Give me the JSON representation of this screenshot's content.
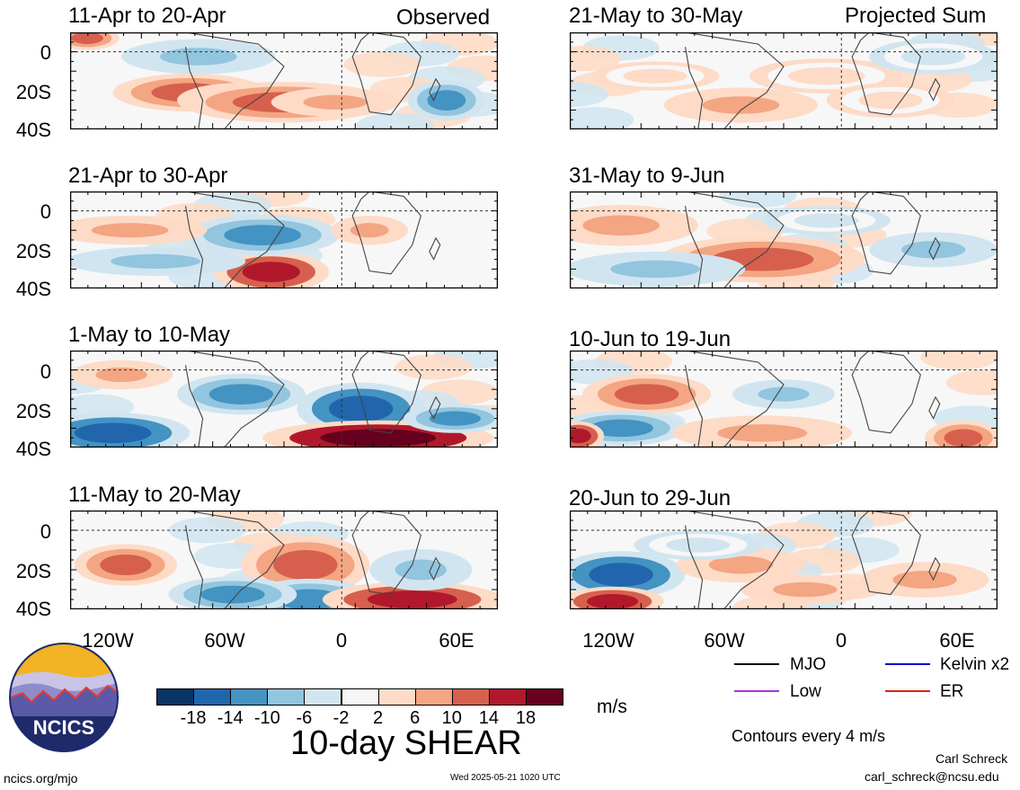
{
  "columns": {
    "observed_label": "Observed",
    "projected_label": "Projected Sum"
  },
  "panels_left": [
    {
      "title": "11-Apr to 20-Apr"
    },
    {
      "title": "21-Apr to 30-Apr"
    },
    {
      "title": "1-May to 10-May"
    },
    {
      "title": "11-May to 20-May"
    }
  ],
  "panels_right": [
    {
      "title": "21-May to 30-May"
    },
    {
      "title": "31-May to 9-Jun"
    },
    {
      "title": "10-Jun to 19-Jun"
    },
    {
      "title": "20-Jun to 29-Jun"
    }
  ],
  "axes": {
    "y_ticks": [
      "0",
      "20S",
      "40S"
    ],
    "x_ticks": [
      "120W",
      "60W",
      "0",
      "60E"
    ]
  },
  "colorbar": {
    "colors": [
      "#0b3466",
      "#2166ac",
      "#4393c3",
      "#92c5de",
      "#d1e5f0",
      "#f7f7f7",
      "#fddbc7",
      "#f4a582",
      "#d6604d",
      "#b2182b",
      "#67001f"
    ],
    "labels": [
      "-18",
      "-14",
      "-10",
      "-6",
      "-2",
      "2",
      "6",
      "10",
      "14",
      "18"
    ],
    "units": "m/s",
    "title": "10-day SHEAR"
  },
  "legend": {
    "items": [
      {
        "label": "MJO",
        "color": "#000000"
      },
      {
        "label": "Kelvin x2",
        "color": "#0000cc"
      },
      {
        "label": "Low",
        "color": "#aa33dd"
      },
      {
        "label": "ER",
        "color": "#dd2211"
      }
    ],
    "contours_note": "Contours every 4 m/s"
  },
  "footer": {
    "site": "ncics.org/mjo",
    "timestamp": "Wed 2025-05-21 1020 UTC",
    "author": "Carl Schreck",
    "email": "carl_schreck@ncsu.edu",
    "logo_text": "NCICS"
  }
}
